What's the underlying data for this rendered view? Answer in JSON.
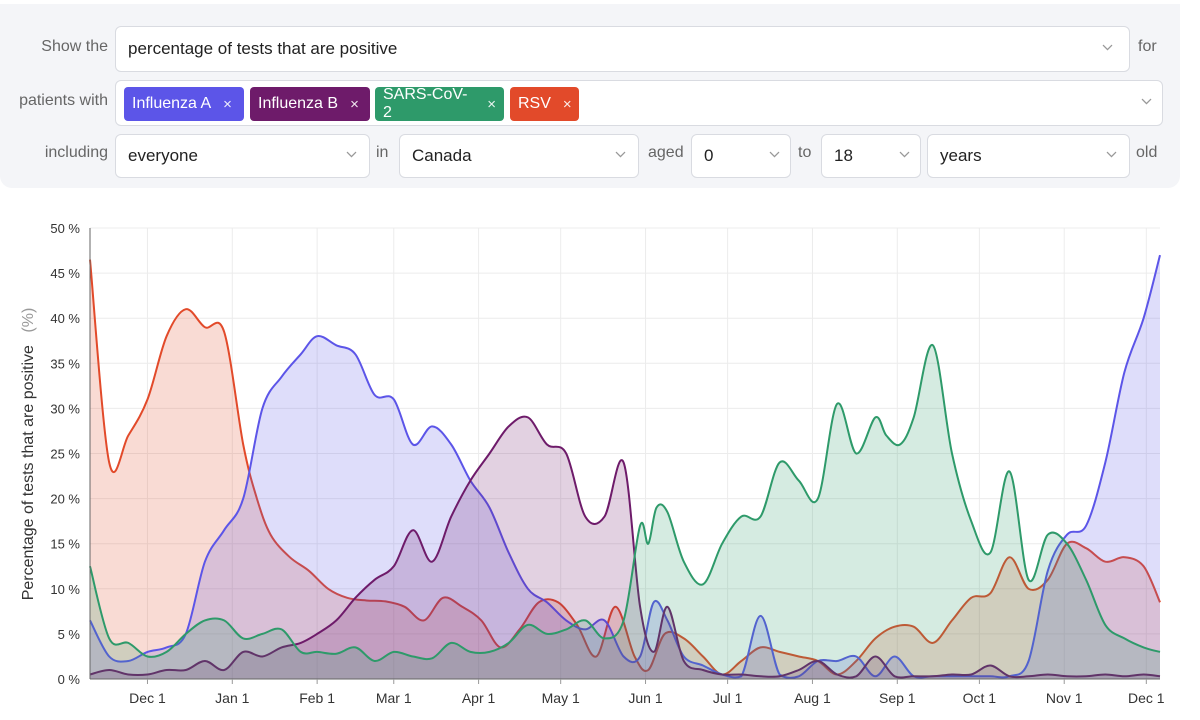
{
  "filters": {
    "show_label": "Show the",
    "metric": "percentage of tests that are positive",
    "for_label": "for",
    "patients_label": "patients with",
    "tags": [
      {
        "label": "Influenza A",
        "remove": "×",
        "color": "#5c55e8"
      },
      {
        "label": "Influenza B",
        "remove": "×",
        "color": "#6e1b6a"
      },
      {
        "label": "SARS-CoV-2",
        "remove": "×",
        "color": "#2e9a6a"
      },
      {
        "label": "RSV",
        "remove": "×",
        "color": "#e24a2a"
      }
    ],
    "including_label": "including",
    "population": "everyone",
    "in_label": "in",
    "region": "Canada",
    "aged_label": "aged",
    "age_min": "0",
    "to_label": "to",
    "age_max": "18",
    "unit": "years",
    "old_label": "old"
  },
  "chart_data": {
    "type": "area",
    "title": "",
    "xlabel": "",
    "ylabel": "Percentage of tests that are positive",
    "ylabel_unit": "(%)",
    "ylim": [
      0,
      50
    ],
    "yticks": [
      0,
      5,
      10,
      15,
      20,
      25,
      30,
      35,
      40,
      45,
      50
    ],
    "ytick_labels": [
      "0 %",
      "5 %",
      "10 %",
      "15 %",
      "20 %",
      "25 %",
      "30 %",
      "35 %",
      "40 %",
      "45 %",
      "50 %"
    ],
    "xlim_days": [
      -21,
      370
    ],
    "x_unit": "days since Dec 1",
    "xticks": [
      {
        "label": "Dec 1",
        "day": 0
      },
      {
        "label": "Jan 1",
        "day": 31
      },
      {
        "label": "Feb 1",
        "day": 62
      },
      {
        "label": "Mar 1",
        "day": 90
      },
      {
        "label": "Apr 1",
        "day": 121
      },
      {
        "label": "May 1",
        "day": 151
      },
      {
        "label": "Jun 1",
        "day": 182
      },
      {
        "label": "Jul 1",
        "day": 212
      },
      {
        "label": "Aug 1",
        "day": 243
      },
      {
        "label": "Sep 1",
        "day": 274
      },
      {
        "label": "Oct 1",
        "day": 304
      },
      {
        "label": "Nov 1",
        "day": 335
      },
      {
        "label": "Dec 1",
        "day": 365
      }
    ],
    "grid": true,
    "series": [
      {
        "name": "RSV",
        "color": "#e24a2a",
        "x": [
          -21,
          -14,
          -7,
          0,
          7,
          14,
          21,
          28,
          35,
          40,
          45,
          52,
          59,
          66,
          73,
          80,
          87,
          94,
          101,
          108,
          115,
          122,
          129,
          136,
          143,
          150,
          157,
          164,
          171,
          178,
          183,
          189,
          196,
          203,
          210,
          217,
          224,
          231,
          238,
          245,
          252,
          259,
          266,
          273,
          280,
          287,
          294,
          301,
          308,
          315,
          322,
          329,
          336,
          343,
          350,
          357,
          364,
          370
        ],
        "values": [
          46.5,
          24,
          27,
          31,
          38,
          41,
          39,
          38.5,
          26,
          20,
          16,
          13.5,
          12,
          10,
          9,
          8.7,
          8.6,
          8,
          6.5,
          9,
          8,
          6.5,
          3.5,
          5.5,
          8.5,
          8.5,
          6,
          2.5,
          8,
          2.5,
          1,
          5,
          4.5,
          2.5,
          0.5,
          2,
          3.5,
          3,
          2.5,
          2,
          0.5,
          2,
          4.5,
          5.8,
          5.8,
          4,
          6.5,
          9,
          9.5,
          13.5,
          10,
          11,
          15,
          14.5,
          13,
          13.5,
          12.5,
          8.5
        ]
      },
      {
        "name": "Influenza A",
        "color": "#5c55e8",
        "x": [
          -21,
          -14,
          -7,
          0,
          7,
          14,
          21,
          28,
          35,
          42,
          49,
          56,
          62,
          69,
          76,
          83,
          90,
          97,
          104,
          111,
          118,
          125,
          132,
          139,
          146,
          153,
          160,
          167,
          174,
          180,
          185,
          190,
          196,
          203,
          210,
          217,
          224,
          231,
          238,
          245,
          252,
          259,
          266,
          273,
          280,
          287,
          294,
          301,
          308,
          315,
          322,
          329,
          336,
          343,
          350,
          357,
          364,
          370
        ],
        "values": [
          6.5,
          2.5,
          2,
          3,
          3.5,
          5,
          13,
          16.5,
          20,
          30,
          33.5,
          36,
          38,
          37,
          36,
          31.5,
          31,
          26,
          28,
          26,
          22,
          19,
          14,
          10,
          8.5,
          6.5,
          5.5,
          6.5,
          2.5,
          2.5,
          8.5,
          6.5,
          2.5,
          1.5,
          0.5,
          0.3,
          7,
          0.5,
          0.3,
          2,
          2,
          2.5,
          0.3,
          2.5,
          0.3,
          0.3,
          0.3,
          0.3,
          0.3,
          0.3,
          2,
          12,
          16,
          17,
          24,
          34,
          40,
          47
        ]
      },
      {
        "name": "Influenza B",
        "color": "#6e1b6a",
        "x": [
          -21,
          -14,
          -7,
          0,
          7,
          14,
          21,
          28,
          35,
          42,
          49,
          56,
          62,
          69,
          76,
          83,
          90,
          97,
          104,
          111,
          118,
          125,
          132,
          139,
          146,
          153,
          160,
          167,
          174,
          180,
          185,
          190,
          196,
          203,
          210,
          217,
          224,
          231,
          238,
          245,
          252,
          259,
          266,
          273,
          280,
          287,
          294,
          301,
          308,
          315,
          322,
          329,
          336,
          343,
          350,
          357,
          364,
          370
        ],
        "values": [
          0.5,
          1,
          0.5,
          0.5,
          1,
          1,
          2,
          1,
          3,
          2.5,
          3.5,
          4,
          5,
          6.5,
          9,
          11,
          12.5,
          16.5,
          13,
          18,
          22,
          25,
          28,
          29,
          26,
          25,
          18,
          18,
          24,
          8,
          3,
          8,
          2,
          1,
          0.5,
          0.5,
          0.3,
          0.3,
          1,
          2,
          0.5,
          0.3,
          2.5,
          0.3,
          0.3,
          0.3,
          0.5,
          0.5,
          1.5,
          0.3,
          0.3,
          0.5,
          0.3,
          0.3,
          0.5,
          0.3,
          0.5,
          0.3
        ]
      },
      {
        "name": "SARS-CoV-2",
        "color": "#2e9a6a",
        "x": [
          -21,
          -14,
          -7,
          0,
          7,
          14,
          21,
          28,
          35,
          42,
          49,
          56,
          62,
          69,
          76,
          83,
          90,
          97,
          104,
          111,
          118,
          125,
          132,
          139,
          146,
          153,
          160,
          167,
          174,
          180,
          183,
          186,
          190,
          196,
          203,
          210,
          217,
          224,
          231,
          238,
          245,
          252,
          259,
          266,
          270,
          275,
          280,
          287,
          294,
          301,
          308,
          315,
          322,
          329,
          336,
          343,
          350,
          357,
          364,
          370
        ],
        "values": [
          12.5,
          4.5,
          4,
          2.5,
          3,
          5,
          6.5,
          6.5,
          4.5,
          5,
          5.5,
          3,
          3,
          2.8,
          3.5,
          2,
          3,
          2.5,
          2.3,
          4,
          3,
          3,
          4,
          6,
          5,
          5.5,
          6.5,
          4.5,
          6.5,
          17,
          15,
          19,
          18.5,
          13,
          10.5,
          15,
          18,
          18,
          24,
          22,
          20,
          30.5,
          25,
          29,
          27,
          26,
          29,
          37,
          25,
          17.5,
          14,
          23,
          11,
          16,
          15,
          11,
          6,
          4.5,
          3.5,
          3
        ]
      }
    ]
  }
}
